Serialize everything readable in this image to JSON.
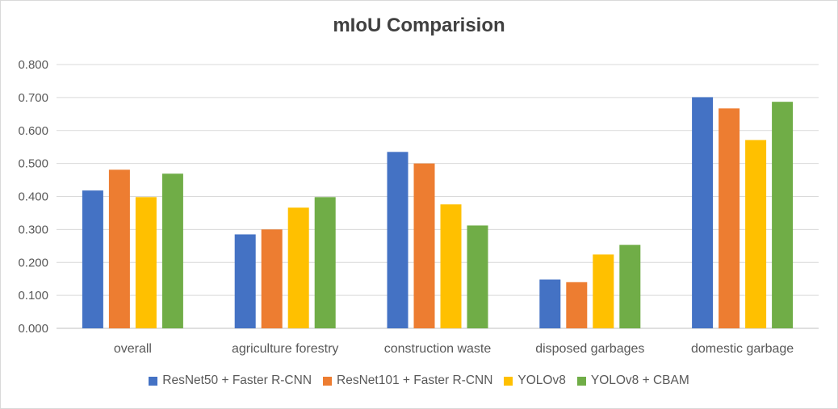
{
  "chart_data": {
    "type": "bar",
    "title": "mIoU Comparision",
    "categories": [
      "overall",
      "agriculture forestry",
      "construction waste",
      "disposed garbages",
      "domestic garbage"
    ],
    "series": [
      {
        "name": "ResNet50 + Faster R-CNN",
        "color": "#4472c4",
        "values": [
          0.418,
          0.285,
          0.535,
          0.148,
          0.701
        ]
      },
      {
        "name": "ResNet101 + Faster R-CNN",
        "color": "#ed7d31",
        "values": [
          0.481,
          0.3,
          0.5,
          0.14,
          0.667
        ]
      },
      {
        "name": "YOLOv8",
        "color": "#ffc000",
        "values": [
          0.398,
          0.366,
          0.376,
          0.224,
          0.571
        ]
      },
      {
        "name": "YOLOv8 + CBAM",
        "color": "#70ad47",
        "values": [
          0.469,
          0.398,
          0.312,
          0.253,
          0.687
        ]
      }
    ],
    "yticks": [
      "0.000",
      "0.100",
      "0.200",
      "0.300",
      "0.400",
      "0.500",
      "0.600",
      "0.700",
      "0.800"
    ],
    "ylim": [
      0,
      0.8
    ],
    "grid": true,
    "legend_position": "bottom"
  }
}
